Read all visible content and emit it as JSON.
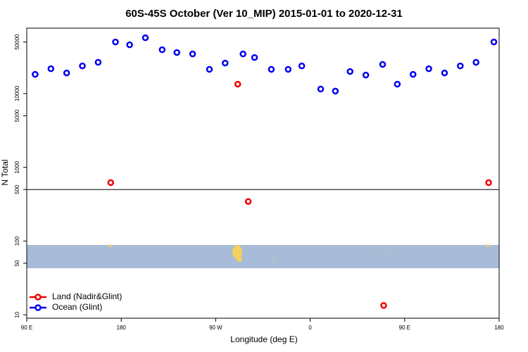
{
  "chart_data": {
    "type": "scatter",
    "title": "60S-45S October (Ver 10_MIP)   2015-01-01 to 2020-12-31",
    "xlabel": "Longitude (deg E)",
    "ylabel": "N Total",
    "log_y": true,
    "xlim": [
      90,
      540
    ],
    "ylim": [
      9,
      77000
    ],
    "xticks": [
      {
        "value": 90,
        "label": "90 E"
      },
      180,
      {
        "value": 270,
        "label": "90 W"
      },
      {
        "value": 360,
        "label": "0"
      },
      {
        "value": 450,
        "label": "90 E"
      },
      {
        "value": 540,
        "label": "180"
      }
    ],
    "yticks": [
      10,
      50,
      100,
      500,
      1000,
      5000,
      10000,
      50000
    ],
    "divider": 500,
    "legend": "bottomleft",
    "series": [
      {
        "name": "Land (Nadir&Glint)",
        "color": "#ee0000",
        "x": [
          170,
          291,
          301,
          430,
          530
        ],
        "values": [
          620,
          13400,
          344,
          13.4,
          620
        ]
      },
      {
        "name": "Ocean (Glint)",
        "color": "#0000ee",
        "x": [
          98,
          113,
          128,
          143,
          158,
          174.5,
          188,
          203,
          219,
          233,
          248,
          264,
          279,
          296,
          307,
          323,
          339,
          352,
          370,
          384,
          398,
          413,
          429,
          443,
          458,
          473,
          488,
          503,
          518,
          535
        ],
        "values": [
          18200,
          21700,
          19000,
          23700,
          26500,
          50000,
          45800,
          57000,
          39300,
          36000,
          34400,
          21300,
          25900,
          34400,
          30800,
          21300,
          21300,
          23700,
          11500,
          10800,
          19900,
          17800,
          24800,
          13400,
          18200,
          21700,
          19000,
          23700,
          26500,
          50000
        ]
      }
    ]
  }
}
